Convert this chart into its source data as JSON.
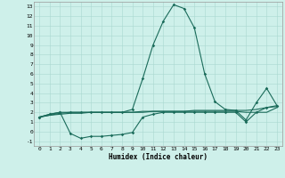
{
  "xlabel": "Humidex (Indice chaleur)",
  "background_color": "#cef0ea",
  "grid_color": "#aad8d0",
  "line_color": "#1a6b5a",
  "xlim": [
    -0.5,
    23.5
  ],
  "ylim": [
    -1.5,
    13.5
  ],
  "xticks": [
    0,
    1,
    2,
    3,
    4,
    5,
    6,
    7,
    8,
    9,
    10,
    11,
    12,
    13,
    14,
    15,
    16,
    17,
    18,
    19,
    20,
    21,
    22,
    23
  ],
  "yticks": [
    -1,
    0,
    1,
    2,
    3,
    4,
    5,
    6,
    7,
    8,
    9,
    10,
    11,
    12,
    13
  ],
  "series": [
    {
      "x": [
        0,
        1,
        2,
        3,
        4,
        5,
        6,
        7,
        8,
        9,
        10,
        11,
        12,
        13,
        14,
        15,
        16,
        17,
        18,
        19,
        20,
        21,
        22,
        23
      ],
      "y": [
        1.5,
        1.7,
        1.9,
        2.0,
        2.0,
        2.0,
        2.0,
        2.0,
        2.0,
        2.0,
        2.0,
        2.1,
        2.1,
        2.1,
        2.1,
        2.2,
        2.2,
        2.2,
        2.2,
        2.2,
        2.2,
        2.3,
        2.5,
        2.6
      ],
      "marker": false,
      "linewidth": 0.8
    },
    {
      "x": [
        0,
        1,
        2,
        3,
        4,
        5,
        6,
        7,
        8,
        9,
        10,
        11,
        12,
        13,
        14,
        15,
        16,
        17,
        18,
        19,
        20,
        21,
        22,
        23
      ],
      "y": [
        1.5,
        1.7,
        1.8,
        1.9,
        1.9,
        2.0,
        2.0,
        2.0,
        2.0,
        2.0,
        2.1,
        2.1,
        2.1,
        2.1,
        2.1,
        2.1,
        2.1,
        2.1,
        2.1,
        2.1,
        2.0,
        2.0,
        2.0,
        2.5
      ],
      "marker": false,
      "linewidth": 0.8
    },
    {
      "x": [
        0,
        1,
        2,
        3,
        4,
        5,
        6,
        7,
        8,
        9,
        10,
        11,
        12,
        13,
        14,
        15,
        16,
        17,
        18,
        19,
        20,
        21,
        22,
        23
      ],
      "y": [
        1.5,
        1.8,
        2.0,
        -0.2,
        -0.7,
        -0.5,
        -0.5,
        -0.4,
        -0.3,
        -0.1,
        1.5,
        1.8,
        2.0,
        2.0,
        2.0,
        2.0,
        2.0,
        2.0,
        2.0,
        2.0,
        1.0,
        2.0,
        2.5,
        2.7
      ],
      "marker": true,
      "linewidth": 0.8
    },
    {
      "x": [
        0,
        1,
        2,
        3,
        4,
        5,
        6,
        7,
        8,
        9,
        10,
        11,
        12,
        13,
        14,
        15,
        16,
        17,
        18,
        19,
        20,
        21,
        22,
        23
      ],
      "y": [
        1.5,
        1.8,
        2.0,
        2.0,
        2.0,
        2.0,
        2.0,
        2.0,
        2.0,
        2.3,
        5.5,
        9.0,
        11.5,
        13.2,
        12.8,
        10.8,
        6.0,
        3.1,
        2.3,
        2.2,
        1.2,
        3.0,
        4.5,
        2.7
      ],
      "marker": true,
      "linewidth": 0.8
    }
  ]
}
